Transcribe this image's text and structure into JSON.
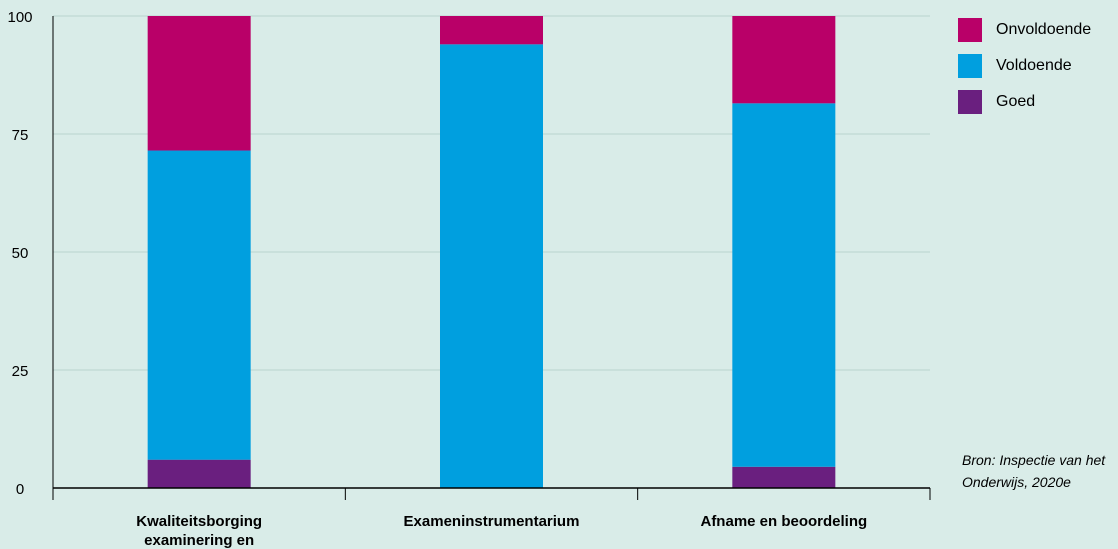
{
  "chart_data": {
    "type": "bar",
    "stacked": true,
    "categories": [
      "Kwaliteitsborging examinering en diplomering",
      "Exameninstrumentarium",
      "Afname en beoordeling"
    ],
    "series": [
      {
        "name": "Goed",
        "color": "#6a1f7f",
        "values": [
          6,
          0,
          4.5
        ]
      },
      {
        "name": "Voldoende",
        "color": "#009fdf",
        "values": [
          65.5,
          94,
          77
        ]
      },
      {
        "name": "Onvoldoende",
        "color": "#b90068",
        "values": [
          28.5,
          6,
          18.5
        ]
      }
    ],
    "ylim": [
      0,
      100
    ],
    "yticks": [
      "0",
      "25",
      "50",
      "75",
      "100"
    ],
    "grid": true,
    "legend_position": "top-right",
    "legend_order": [
      "Onvoldoende",
      "Voldoende",
      "Goed"
    ]
  },
  "source_note": {
    "line1": "Bron: Inspectie van het",
    "line2": "Onderwijs, 2020e"
  }
}
